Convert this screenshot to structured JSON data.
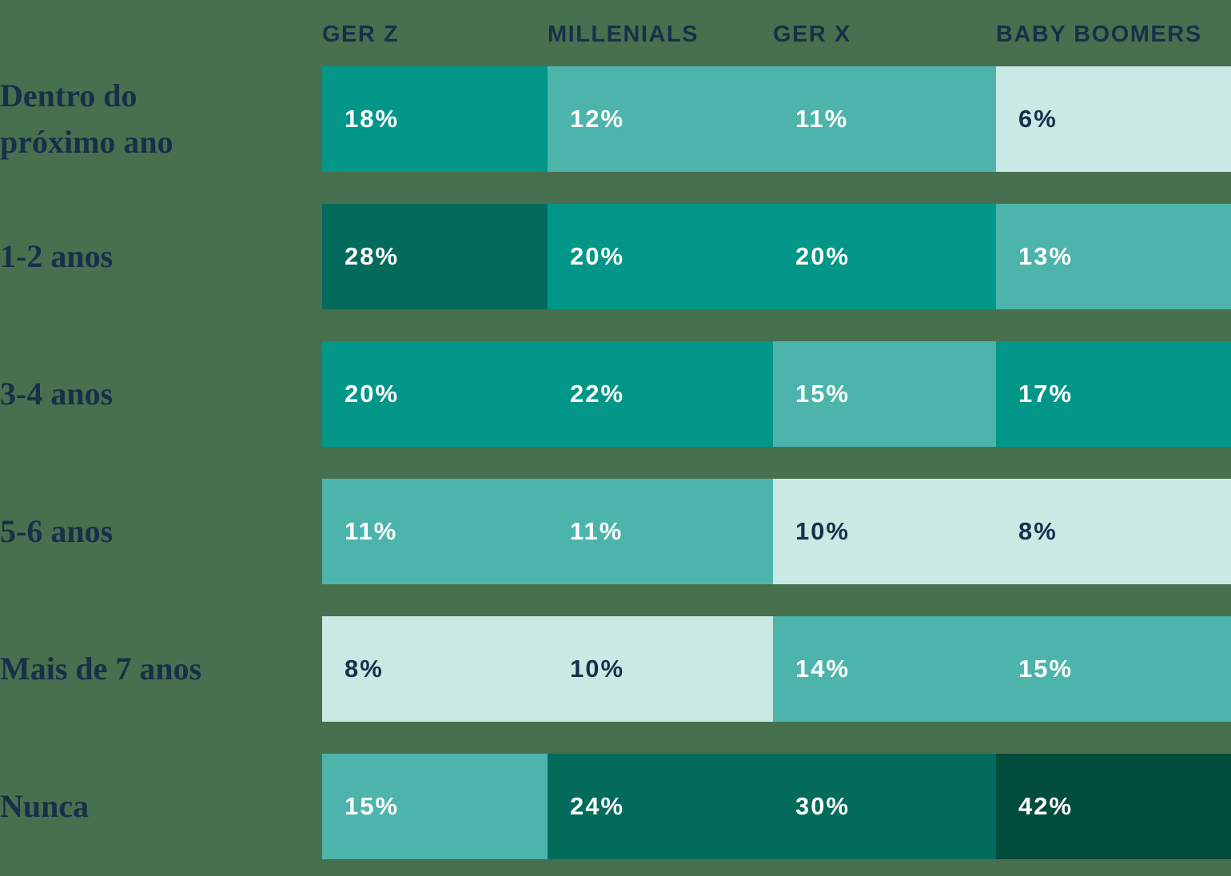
{
  "chart_data": {
    "type": "heatmap",
    "title": "",
    "columns": [
      "GER Z",
      "MILLENIALS",
      "GER X",
      "BABY BOOMERS"
    ],
    "rows": [
      "Dentro do\npróximo ano",
      "1-2 anos",
      "3-4 anos",
      "5-6 anos",
      "Mais de 7 anos",
      "Nunca"
    ],
    "values": [
      [
        18,
        12,
        11,
        6
      ],
      [
        28,
        20,
        20,
        13
      ],
      [
        20,
        22,
        15,
        17
      ],
      [
        11,
        11,
        10,
        8
      ],
      [
        8,
        10,
        14,
        15
      ],
      [
        15,
        24,
        30,
        42
      ]
    ],
    "unit": "%",
    "legend_position": "none",
    "grid": false
  },
  "palette": {
    "background": "#47714e",
    "text_dark": "#17304a",
    "text_light": "#ffffff",
    "bins": [
      {
        "max": 10,
        "color": "#c9e9e4",
        "text": "#17304a"
      },
      {
        "max": 16,
        "color": "#4db4ab",
        "text": "#ffffff"
      },
      {
        "max": 23,
        "color": "#019688",
        "text": "#ffffff"
      },
      {
        "max": 34,
        "color": "#026b5c",
        "text": "#ffffff"
      },
      {
        "max": 100,
        "color": "#004d3e",
        "text": "#ffffff"
      }
    ]
  }
}
